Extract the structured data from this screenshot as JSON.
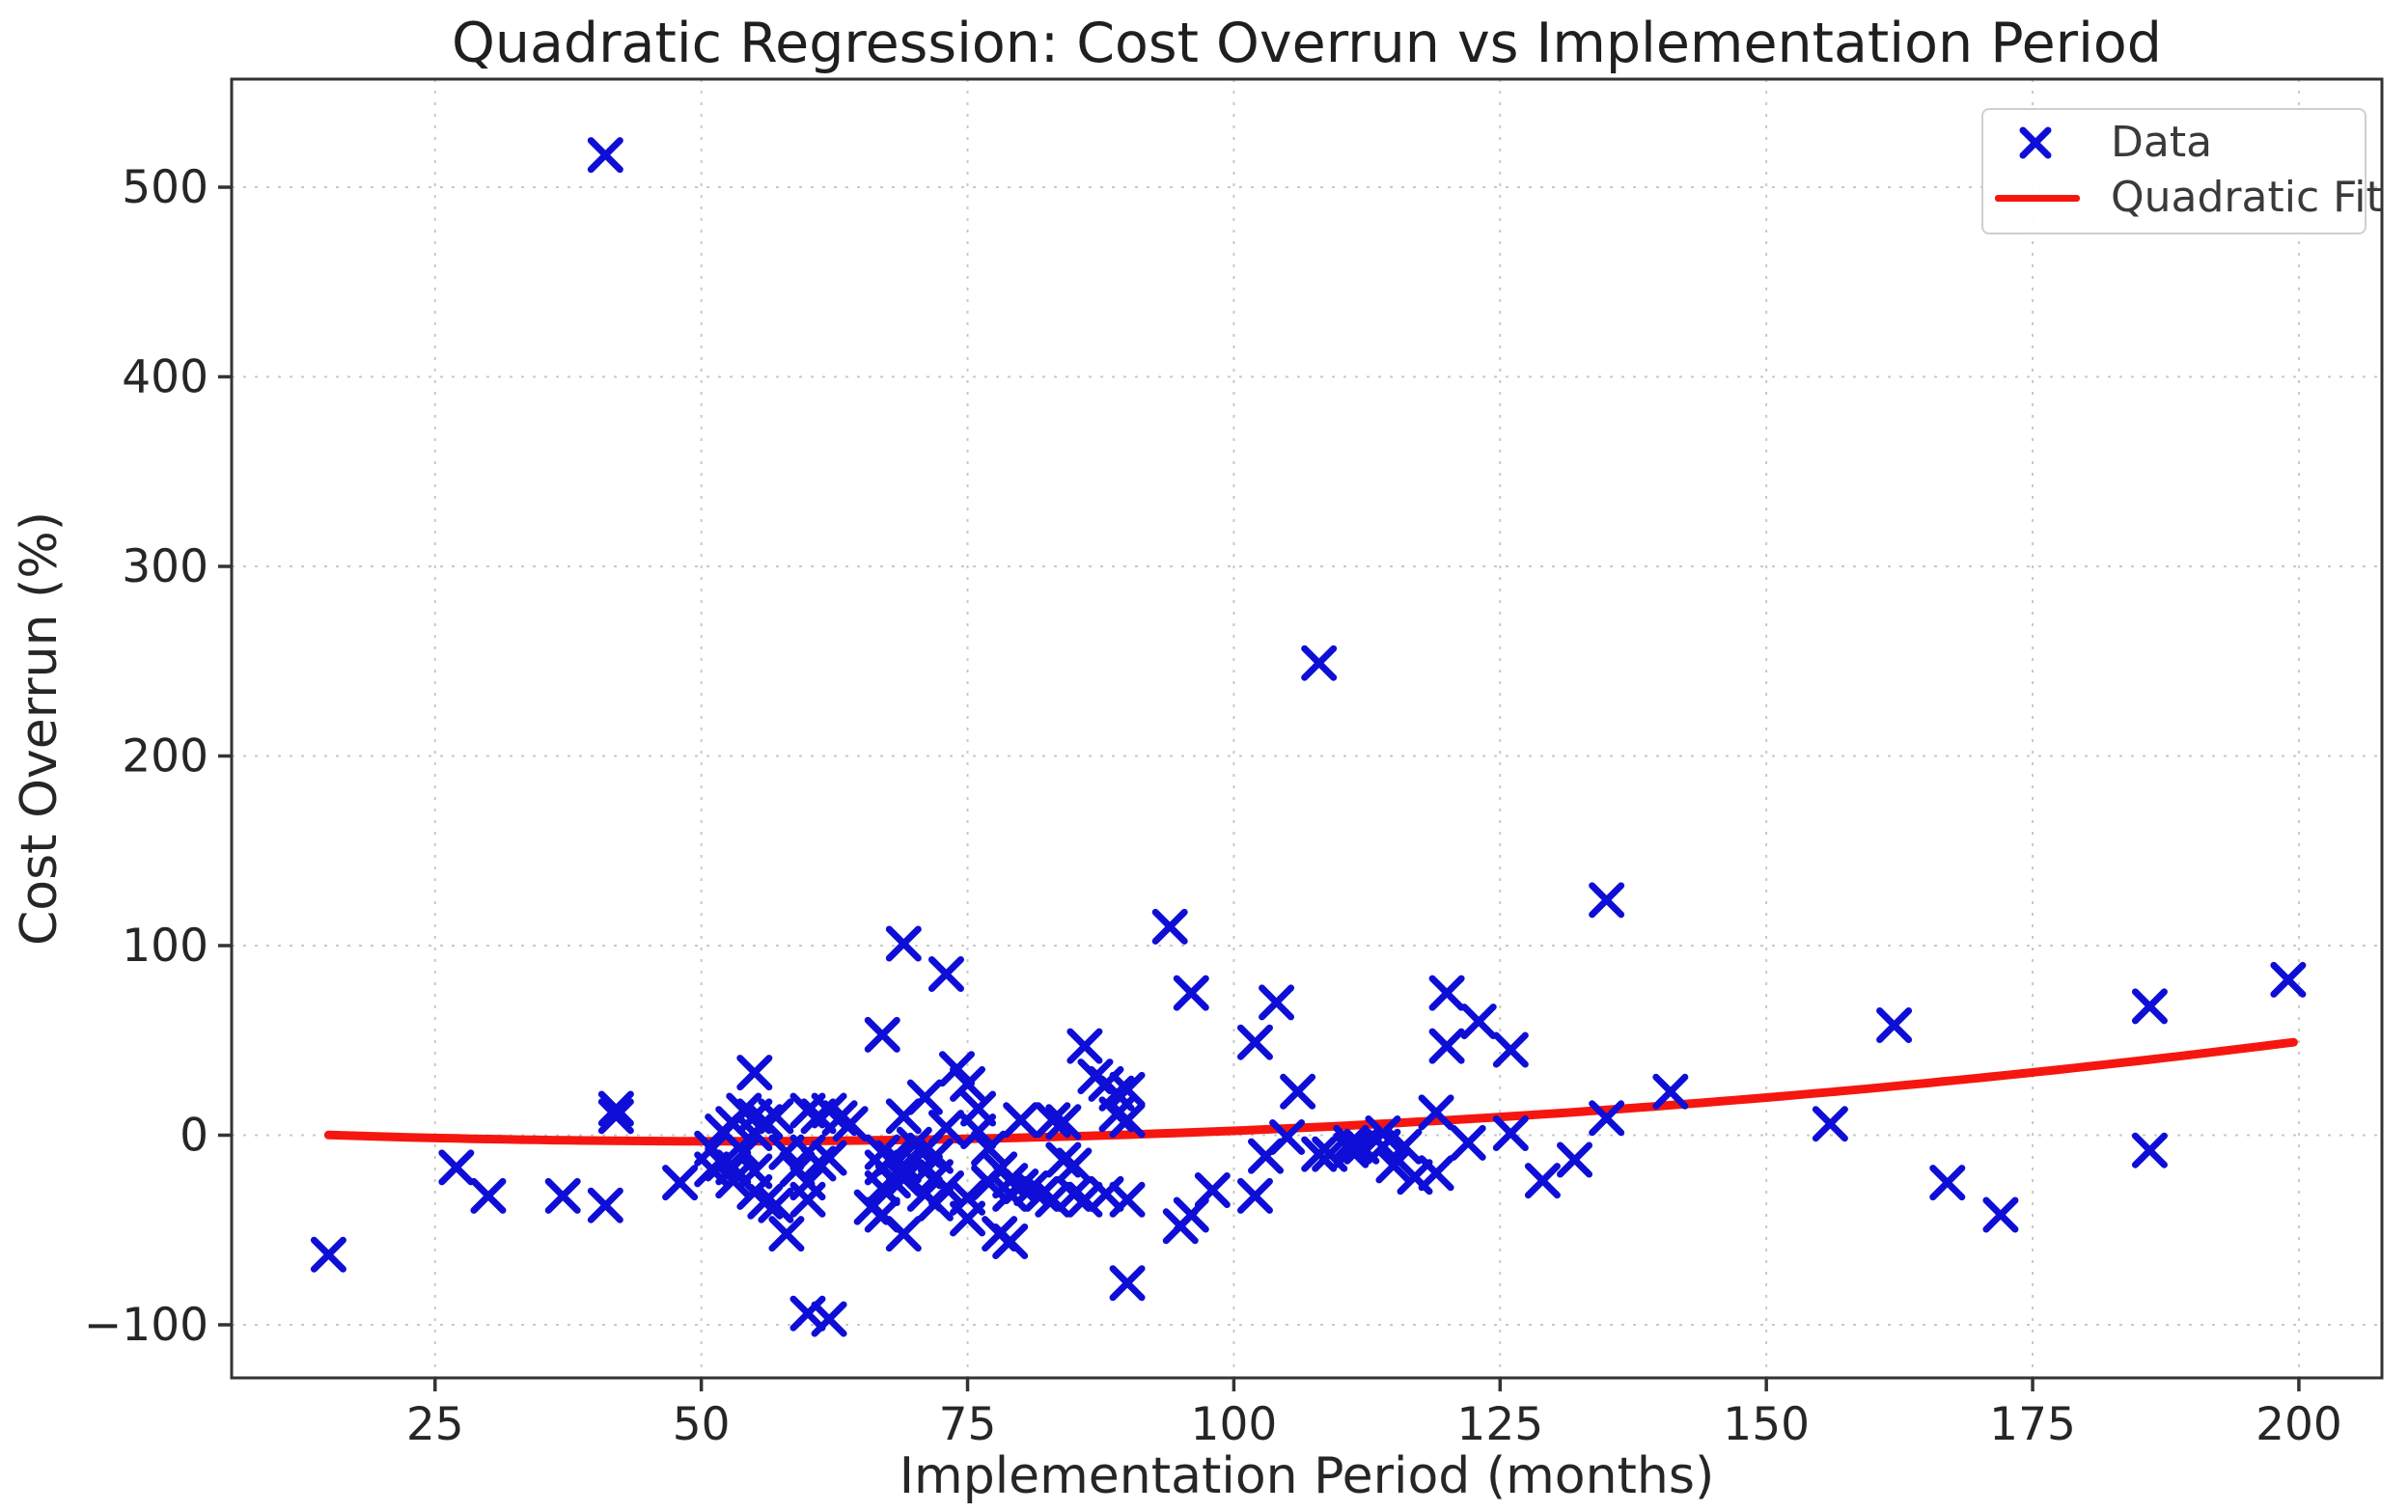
{
  "chart_data": {
    "type": "scatter",
    "title": "Quadratic Regression: Cost Overrun vs Implementation Period",
    "xlabel": "Implementation Period (months)",
    "ylabel": "Cost Overrun (%)",
    "xlim": [
      5.9,
      207.8
    ],
    "ylim": [
      -128,
      557
    ],
    "x_ticks": [
      25,
      50,
      75,
      100,
      125,
      150,
      175,
      200
    ],
    "y_ticks": [
      -100,
      0,
      100,
      200,
      300,
      400,
      500
    ],
    "grid": true,
    "grid_color": "#c8c8c8",
    "spine_color": "#333333",
    "background": "#ffffff",
    "legend": {
      "position": "upper right",
      "entries": [
        {
          "label": "Data",
          "marker": "x",
          "color": "#0e0ed6"
        },
        {
          "label": "Quadratic Fit",
          "marker": "line",
          "color": "#f5170f"
        }
      ]
    },
    "series": [
      {
        "name": "Data",
        "type": "scatter",
        "marker": "x",
        "color": "#0e0ed6",
        "points": [
          [
            15,
            -63
          ],
          [
            27,
            -17
          ],
          [
            30,
            -32
          ],
          [
            37,
            -32
          ],
          [
            41,
            -37
          ],
          [
            41,
            517
          ],
          [
            42,
            10
          ],
          [
            42,
            14
          ],
          [
            48,
            -25
          ],
          [
            51,
            -7
          ],
          [
            51,
            -18
          ],
          [
            52,
            2
          ],
          [
            52,
            -15
          ],
          [
            53,
            6
          ],
          [
            53,
            -17
          ],
          [
            53,
            -24
          ],
          [
            54,
            13
          ],
          [
            54,
            -9
          ],
          [
            55,
            33
          ],
          [
            55,
            10
          ],
          [
            55,
            1
          ],
          [
            55,
            -19
          ],
          [
            55,
            -30
          ],
          [
            56,
            7
          ],
          [
            56,
            -35
          ],
          [
            57,
            10
          ],
          [
            57,
            -37
          ],
          [
            58,
            -9
          ],
          [
            58,
            -52
          ],
          [
            59,
            -18
          ],
          [
            60,
            13
          ],
          [
            60,
            -9
          ],
          [
            60,
            -25
          ],
          [
            60,
            -34
          ],
          [
            60,
            -94
          ],
          [
            61,
            10
          ],
          [
            61,
            -15
          ],
          [
            62,
            13
          ],
          [
            62,
            -12
          ],
          [
            62,
            -97
          ],
          [
            63,
            9
          ],
          [
            64,
            6
          ],
          [
            66,
            -38
          ],
          [
            67,
            53
          ],
          [
            67,
            -9
          ],
          [
            67,
            -17
          ],
          [
            67,
            -28
          ],
          [
            67,
            -42
          ],
          [
            68,
            -12
          ],
          [
            68,
            -24
          ],
          [
            69,
            101
          ],
          [
            69,
            10
          ],
          [
            69,
            -16
          ],
          [
            69,
            -23
          ],
          [
            69,
            -52
          ],
          [
            70,
            -5
          ],
          [
            71,
            20
          ],
          [
            71,
            -8
          ],
          [
            71,
            -19
          ],
          [
            71,
            -31
          ],
          [
            72,
            -11
          ],
          [
            72,
            -22
          ],
          [
            72,
            -36
          ],
          [
            73,
            85
          ],
          [
            73,
            4
          ],
          [
            73,
            -28
          ],
          [
            74,
            35
          ],
          [
            75,
            27
          ],
          [
            75,
            -33
          ],
          [
            75,
            -44
          ],
          [
            76,
            14
          ],
          [
            76,
            2
          ],
          [
            77,
            -7
          ],
          [
            77,
            -25
          ],
          [
            78,
            -18
          ],
          [
            78,
            -52
          ],
          [
            79,
            -24
          ],
          [
            79,
            -31
          ],
          [
            79,
            -56
          ],
          [
            80,
            8
          ],
          [
            80,
            -27
          ],
          [
            81,
            -28
          ],
          [
            82,
            -31
          ],
          [
            83,
            8
          ],
          [
            83,
            -34
          ],
          [
            84,
            7
          ],
          [
            84,
            -13
          ],
          [
            85,
            -16
          ],
          [
            85,
            -31
          ],
          [
            86,
            47
          ],
          [
            86,
            -34
          ],
          [
            87,
            31
          ],
          [
            88,
            27
          ],
          [
            88,
            -31
          ],
          [
            89,
            22
          ],
          [
            89,
            11
          ],
          [
            90,
            24
          ],
          [
            90,
            8
          ],
          [
            90,
            -34
          ],
          [
            90,
            -78
          ],
          [
            94,
            110
          ],
          [
            95,
            -48
          ],
          [
            96,
            75
          ],
          [
            96,
            -42
          ],
          [
            98,
            -29
          ],
          [
            102,
            49
          ],
          [
            102,
            -32
          ],
          [
            103,
            -11
          ],
          [
            104,
            70
          ],
          [
            105,
            -1
          ],
          [
            106,
            23
          ],
          [
            108,
            249
          ],
          [
            108,
            -10
          ],
          [
            109,
            -10
          ],
          [
            111,
            -4
          ],
          [
            111,
            -8
          ],
          [
            112,
            -6
          ],
          [
            114,
            1
          ],
          [
            114,
            -6
          ],
          [
            115,
            -16
          ],
          [
            116,
            -6
          ],
          [
            117,
            -22
          ],
          [
            119,
            12
          ],
          [
            119,
            -20
          ],
          [
            120,
            75
          ],
          [
            120,
            47
          ],
          [
            122,
            -4
          ],
          [
            123,
            60
          ],
          [
            126,
            45
          ],
          [
            126,
            1
          ],
          [
            129,
            -24
          ],
          [
            132,
            -13
          ],
          [
            135,
            124
          ],
          [
            135,
            9
          ],
          [
            141,
            23
          ],
          [
            156,
            6
          ],
          [
            162,
            58
          ],
          [
            167,
            -25
          ],
          [
            172,
            -42
          ],
          [
            186,
            68
          ],
          [
            186,
            -8
          ],
          [
            199,
            82
          ]
        ]
      },
      {
        "name": "Quadratic Fit",
        "type": "line",
        "color": "#f5170f",
        "fit": {
          "form": "y = a*(x-h)^2 + k",
          "a": 0.0024,
          "h": 52,
          "k": -3.2,
          "x_start": 15,
          "x_end": 199.5
        }
      }
    ]
  }
}
